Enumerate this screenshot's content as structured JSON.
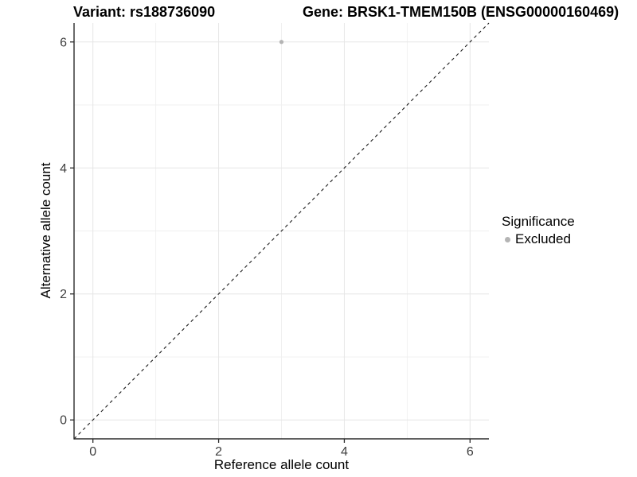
{
  "figure": {
    "titles": {
      "variant": "Variant: rs188736090",
      "gene": "Gene: BRSK1-TMEM150B (ENSG00000160469)"
    },
    "axes": {
      "x_label": "Reference allele count",
      "y_label": "Alternative allele count"
    },
    "legend": {
      "title": "Significance",
      "items": [
        {
          "label": "Excluded",
          "color": "#b4b4b4"
        }
      ]
    }
  },
  "chart_data": {
    "type": "scatter",
    "title_left": "Variant: rs188736090",
    "title_right": "Gene: BRSK1-TMEM150B (ENSG00000160469)",
    "xlabel": "Reference allele count",
    "ylabel": "Alternative allele count",
    "xlim": [
      -0.3,
      6.3
    ],
    "ylim": [
      -0.3,
      6.3
    ],
    "x_ticks": [
      0,
      2,
      4,
      6
    ],
    "y_ticks": [
      0,
      2,
      4,
      6
    ],
    "x_minor_ticks": [
      1,
      3,
      5
    ],
    "y_minor_ticks": [
      1,
      3,
      5
    ],
    "grid": "major_and_minor",
    "legend_position": "right",
    "legend_title": "Significance",
    "series": [
      {
        "name": "Excluded",
        "color": "#b4b4b4",
        "points": [
          {
            "x": 3,
            "y": 6
          }
        ]
      }
    ],
    "reference_line": {
      "kind": "identity_y_equals_x",
      "style": "dashed",
      "color": "#1a1a1a"
    },
    "colors": {
      "grid_major": "#e6e6e6",
      "grid_minor": "#f0f0f0",
      "axis_line": "#2b2b2b",
      "tick_text": "#404040",
      "point": "#b4b4b4"
    }
  }
}
